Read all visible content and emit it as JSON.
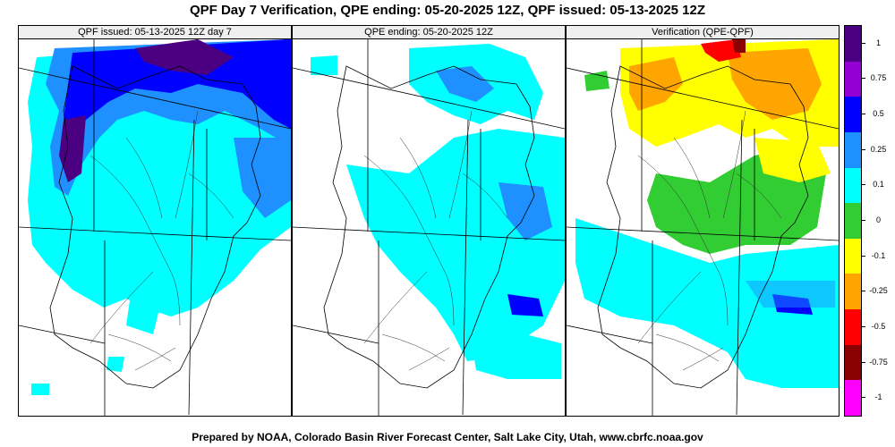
{
  "title": "QPF Day 7 Verification, QPE ending: 05-20-2025 12Z, QPF issued: 05-13-2025 12Z",
  "footer": "Prepared by NOAA, Colorado Basin River Forecast Center, Salt Lake City, Utah, www.cbrfc.noaa.gov",
  "panels": [
    {
      "label": "QPF issued: 05-13-2025 12Z day 7"
    },
    {
      "label": "QPE ending: 05-20-2025 12Z"
    },
    {
      "label": "Verification (QPE-QPF)"
    }
  ],
  "colorbar": {
    "colors": [
      "#4b0082",
      "#9400d3",
      "#0000ff",
      "#1e90ff",
      "#00ffff",
      "#32cd32",
      "#ffff00",
      "#ffa500",
      "#ff0000",
      "#8b0000",
      "#ff00ff"
    ],
    "tick_labels": [
      "1",
      "0.75",
      "0.5",
      "0.25",
      "0.1",
      "0",
      "-0.1",
      "-0.25",
      "-0.5",
      "-0.75",
      "-1"
    ]
  }
}
